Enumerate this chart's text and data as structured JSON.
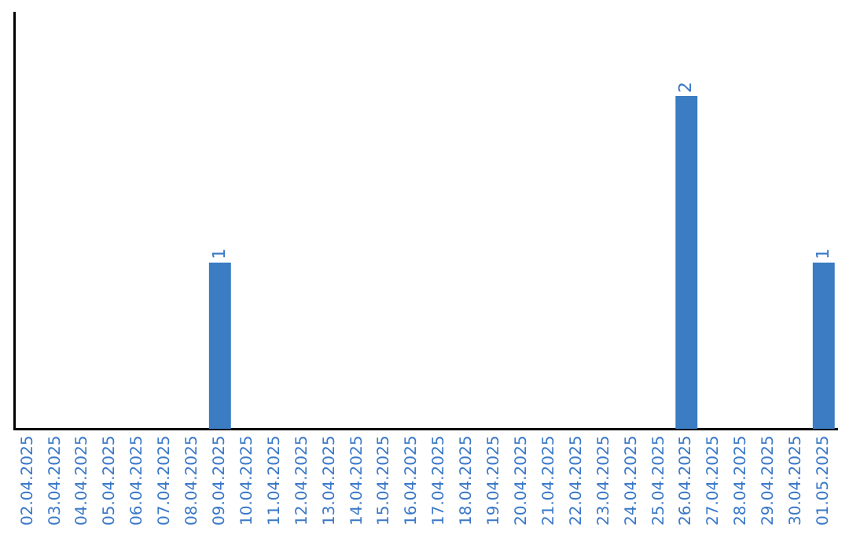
{
  "chart_data": {
    "type": "bar",
    "categories": [
      "02.04.2025",
      "03.04.2025",
      "04.04.2025",
      "05.04.2025",
      "06.04.2025",
      "07.04.2025",
      "08.04.2025",
      "09.04.2025",
      "10.04.2025",
      "11.04.2025",
      "12.04.2025",
      "13.04.2025",
      "14.04.2025",
      "15.04.2025",
      "16.04.2025",
      "17.04.2025",
      "18.04.2025",
      "19.04.2025",
      "20.04.2025",
      "21.04.2025",
      "22.04.2025",
      "23.04.2025",
      "24.04.2025",
      "25.04.2025",
      "26.04.2025",
      "27.04.2025",
      "28.04.2025",
      "29.04.2025",
      "30.04.2025",
      "01.05.2025"
    ],
    "values": [
      0,
      0,
      0,
      0,
      0,
      0,
      0,
      1,
      0,
      0,
      0,
      0,
      0,
      0,
      0,
      0,
      0,
      0,
      0,
      0,
      0,
      0,
      0,
      0,
      2,
      0,
      0,
      0,
      0,
      1
    ],
    "value_labels": [
      null,
      null,
      null,
      null,
      null,
      null,
      null,
      "1",
      null,
      null,
      null,
      null,
      null,
      null,
      null,
      null,
      null,
      null,
      null,
      null,
      null,
      null,
      null,
      null,
      "2",
      null,
      null,
      null,
      null,
      "1"
    ],
    "color": "#3b7cc2",
    "tick_labels": "x",
    "grid": false,
    "legend": false
  }
}
